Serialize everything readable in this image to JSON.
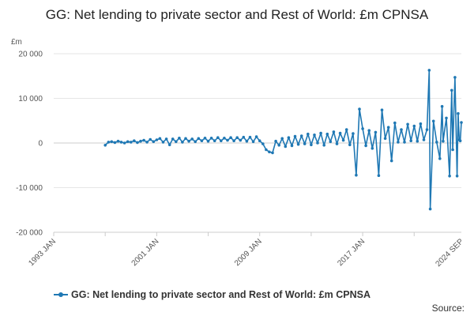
{
  "chart_data": {
    "type": "line",
    "title": "GG: Net lending to private sector and Rest of World: £m CPNSA",
    "unit_label": "£m",
    "ylim": [
      -20000,
      20000
    ],
    "yticks": [
      20000,
      10000,
      0,
      -10000,
      -20000
    ],
    "ytick_labels": [
      "20 000",
      "10 000",
      "0",
      "-10 000",
      "-20 000"
    ],
    "x_range": [
      "1993-01",
      "2024-09"
    ],
    "xticks": [
      "1993 JAN",
      "2001 JAN",
      "2009 JAN",
      "2017 JAN",
      "2024 SEP"
    ],
    "grid": "horizontal",
    "legend_position": "bottom",
    "series": [
      {
        "name": "GG: Net lending to private sector and Rest of World: £m CPNSA",
        "color": "#1f78b4",
        "points": [
          [
            "1997-01",
            -500
          ],
          [
            "1997-04",
            200
          ],
          [
            "1997-07",
            300
          ],
          [
            "1997-10",
            100
          ],
          [
            "1998-01",
            400
          ],
          [
            "1998-04",
            200
          ],
          [
            "1998-07",
            0
          ],
          [
            "1998-10",
            300
          ],
          [
            "1999-01",
            200
          ],
          [
            "1999-04",
            500
          ],
          [
            "1999-07",
            100
          ],
          [
            "1999-10",
            400
          ],
          [
            "2000-01",
            600
          ],
          [
            "2000-04",
            200
          ],
          [
            "2000-07",
            800
          ],
          [
            "2000-10",
            300
          ],
          [
            "2001-01",
            700
          ],
          [
            "2001-04",
            1000
          ],
          [
            "2001-07",
            200
          ],
          [
            "2001-10",
            900
          ],
          [
            "2002-01",
            -400
          ],
          [
            "2002-04",
            900
          ],
          [
            "2002-07",
            300
          ],
          [
            "2002-10",
            1100
          ],
          [
            "2003-01",
            200
          ],
          [
            "2003-04",
            1000
          ],
          [
            "2003-07",
            400
          ],
          [
            "2003-10",
            900
          ],
          [
            "2004-01",
            300
          ],
          [
            "2004-04",
            1000
          ],
          [
            "2004-07",
            500
          ],
          [
            "2004-10",
            1100
          ],
          [
            "2005-01",
            400
          ],
          [
            "2005-04",
            1100
          ],
          [
            "2005-07",
            500
          ],
          [
            "2005-10",
            1200
          ],
          [
            "2006-01",
            500
          ],
          [
            "2006-04",
            1100
          ],
          [
            "2006-07",
            600
          ],
          [
            "2006-10",
            1200
          ],
          [
            "2007-01",
            500
          ],
          [
            "2007-04",
            1200
          ],
          [
            "2007-07",
            600
          ],
          [
            "2007-10",
            1300
          ],
          [
            "2008-01",
            400
          ],
          [
            "2008-04",
            1300
          ],
          [
            "2008-07",
            300
          ],
          [
            "2008-10",
            1400
          ],
          [
            "2009-01",
            500
          ],
          [
            "2009-04",
            -200
          ],
          [
            "2009-07",
            -1500
          ],
          [
            "2009-10",
            -2000
          ],
          [
            "2010-01",
            -2200
          ],
          [
            "2010-04",
            400
          ],
          [
            "2010-07",
            -500
          ],
          [
            "2010-10",
            1000
          ],
          [
            "2011-01",
            -800
          ],
          [
            "2011-04",
            1200
          ],
          [
            "2011-07",
            -600
          ],
          [
            "2011-10",
            1500
          ],
          [
            "2012-01",
            -300
          ],
          [
            "2012-04",
            1600
          ],
          [
            "2012-07",
            -200
          ],
          [
            "2012-10",
            2000
          ],
          [
            "2013-01",
            -400
          ],
          [
            "2013-04",
            1800
          ],
          [
            "2013-07",
            0
          ],
          [
            "2013-10",
            2200
          ],
          [
            "2014-01",
            -500
          ],
          [
            "2014-04",
            2000
          ],
          [
            "2014-07",
            300
          ],
          [
            "2014-10",
            2500
          ],
          [
            "2015-01",
            -200
          ],
          [
            "2015-04",
            2200
          ],
          [
            "2015-07",
            600
          ],
          [
            "2015-10",
            3000
          ],
          [
            "2016-01",
            -400
          ],
          [
            "2016-04",
            2100
          ],
          [
            "2016-07",
            -7200
          ],
          [
            "2016-10",
            7600
          ],
          [
            "2017-01",
            3200
          ],
          [
            "2017-04",
            -600
          ],
          [
            "2017-07",
            2800
          ],
          [
            "2017-10",
            -1200
          ],
          [
            "2018-01",
            2400
          ],
          [
            "2018-04",
            -7300
          ],
          [
            "2018-07",
            7400
          ],
          [
            "2018-10",
            1000
          ],
          [
            "2019-01",
            3500
          ],
          [
            "2019-04",
            -4000
          ],
          [
            "2019-07",
            4500
          ],
          [
            "2019-10",
            200
          ],
          [
            "2020-01",
            3000
          ],
          [
            "2020-04",
            200
          ],
          [
            "2020-07",
            4200
          ],
          [
            "2020-10",
            500
          ],
          [
            "2021-01",
            3800
          ],
          [
            "2021-04",
            400
          ],
          [
            "2021-07",
            4300
          ],
          [
            "2021-10",
            700
          ],
          [
            "2022-01",
            3000
          ],
          [
            "2022-03",
            16300
          ],
          [
            "2022-04",
            -14800
          ],
          [
            "2022-07",
            4900
          ],
          [
            "2022-10",
            200
          ],
          [
            "2023-01",
            -3500
          ],
          [
            "2023-03",
            8200
          ],
          [
            "2023-04",
            400
          ],
          [
            "2023-07",
            5600
          ],
          [
            "2023-10",
            -7400
          ],
          [
            "2023-12",
            11800
          ],
          [
            "2024-01",
            -1500
          ],
          [
            "2024-03",
            14700
          ],
          [
            "2024-05",
            -7400
          ],
          [
            "2024-06",
            6600
          ],
          [
            "2024-07",
            700
          ],
          [
            "2024-08",
            500
          ],
          [
            "2024-09",
            4600
          ]
        ]
      }
    ],
    "source_label": "Source:"
  }
}
